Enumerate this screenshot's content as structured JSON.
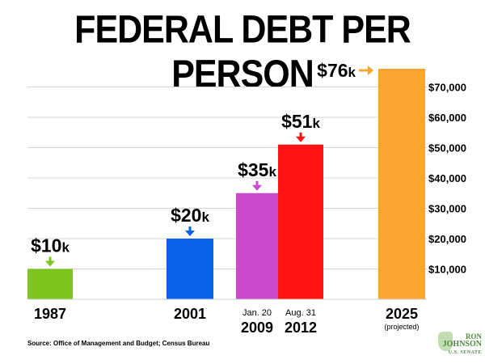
{
  "chart_data": {
    "type": "bar",
    "title": "FEDERAL DEBT PER PERSON",
    "ylim": [
      0,
      80000
    ],
    "y_ticks": [
      {
        "value": 10000,
        "label": "$10,000"
      },
      {
        "value": 20000,
        "label": "$20,000"
      },
      {
        "value": 30000,
        "label": "$30,000"
      },
      {
        "value": 40000,
        "label": "$40,000"
      },
      {
        "value": 50000,
        "label": "$50,000"
      },
      {
        "value": 60000,
        "label": "$60,000"
      },
      {
        "value": 70000,
        "label": "$70,000"
      }
    ],
    "grid": true,
    "bars": [
      {
        "year": "1987",
        "prefix": "",
        "note": "",
        "value": 10000,
        "label_num": "$10",
        "label_unit": "k",
        "color": "#7ec51f",
        "arrow_color": "#7ec51f",
        "arrow": "down"
      },
      {
        "year": "2001",
        "prefix": "",
        "note": "",
        "value": 20000,
        "label_num": "$20",
        "label_unit": "k",
        "color": "#0a62e8",
        "arrow_color": "#0a62e8",
        "arrow": "down"
      },
      {
        "year": "2009",
        "prefix": "Jan. 20",
        "note": "",
        "value": 35000,
        "label_num": "$35",
        "label_unit": "k",
        "color": "#c94bcc",
        "arrow_color": "#c94bcc",
        "arrow": "down"
      },
      {
        "year": "2012",
        "prefix": "Aug. 31",
        "note": "",
        "value": 51000,
        "label_num": "$51",
        "label_unit": "k",
        "color": "#ff1212",
        "arrow_color": "#ff1212",
        "arrow": "down"
      },
      {
        "year": "2025",
        "prefix": "",
        "note": "(projected)",
        "value": 76000,
        "label_num": "$76",
        "label_unit": "k",
        "color": "#f8a531",
        "arrow_color": "#f8a531",
        "arrow": "right"
      }
    ]
  },
  "source": "Source: Office of Management and Budget; Census Bureau",
  "logo": {
    "line1": "RON",
    "line2": "JOHNSON",
    "line3": "U.S. SENATE"
  }
}
